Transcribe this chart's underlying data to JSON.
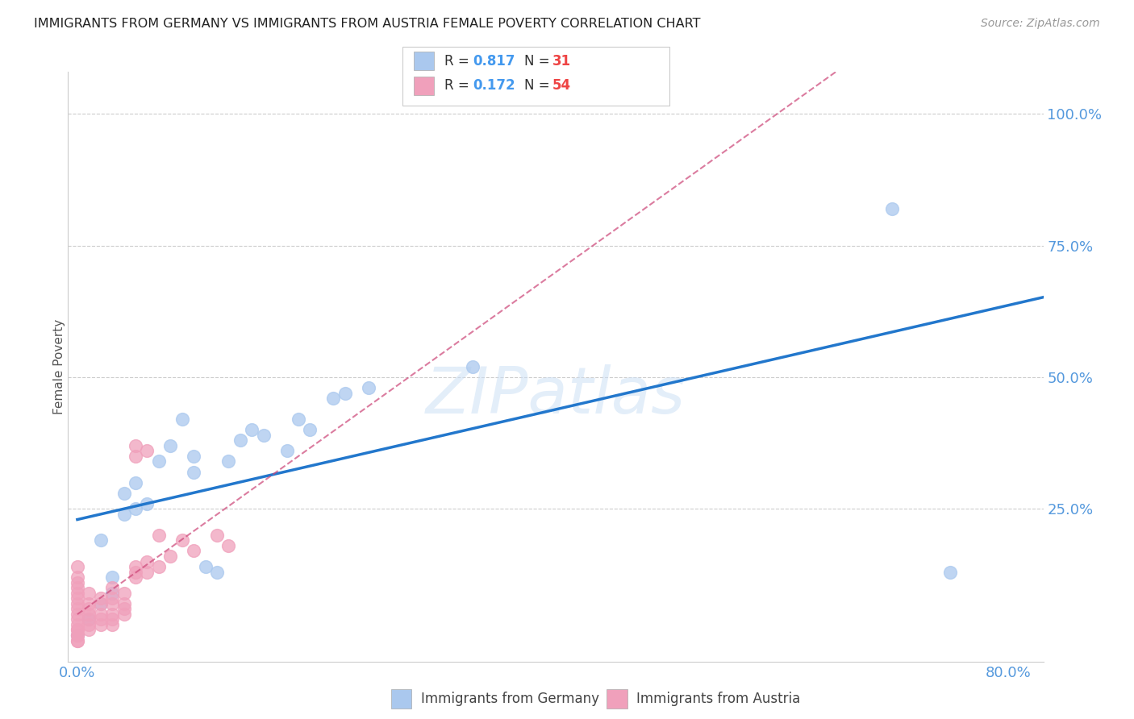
{
  "title": "IMMIGRANTS FROM GERMANY VS IMMIGRANTS FROM AUSTRIA FEMALE POVERTY CORRELATION CHART",
  "source": "Source: ZipAtlas.com",
  "tick_color": "#5599dd",
  "ylabel": "Female Poverty",
  "xlim": [
    -0.008,
    0.83
  ],
  "ylim": [
    -0.04,
    1.08
  ],
  "germany_R": 0.817,
  "germany_N": 31,
  "austria_R": 0.172,
  "austria_N": 54,
  "germany_color": "#aac8ee",
  "germany_line_color": "#2277cc",
  "austria_color": "#f0a0bb",
  "austria_line_color": "#cc4477",
  "legend_label_germany": "Immigrants from Germany",
  "legend_label_austria": "Immigrants from Austria",
  "germany_x": [
    0.0,
    0.01,
    0.02,
    0.02,
    0.03,
    0.03,
    0.04,
    0.04,
    0.05,
    0.05,
    0.06,
    0.07,
    0.08,
    0.09,
    0.1,
    0.1,
    0.11,
    0.12,
    0.13,
    0.14,
    0.15,
    0.16,
    0.18,
    0.19,
    0.2,
    0.22,
    0.23,
    0.25,
    0.34,
    0.7,
    0.75
  ],
  "germany_y": [
    0.01,
    0.04,
    0.07,
    0.19,
    0.09,
    0.12,
    0.24,
    0.28,
    0.25,
    0.3,
    0.26,
    0.34,
    0.37,
    0.42,
    0.32,
    0.35,
    0.14,
    0.13,
    0.34,
    0.38,
    0.4,
    0.39,
    0.36,
    0.42,
    0.4,
    0.46,
    0.47,
    0.48,
    0.52,
    0.82,
    0.13
  ],
  "austria_x": [
    0.0,
    0.0,
    0.0,
    0.0,
    0.0,
    0.0,
    0.0,
    0.0,
    0.0,
    0.0,
    0.0,
    0.0,
    0.0,
    0.0,
    0.0,
    0.0,
    0.0,
    0.01,
    0.01,
    0.01,
    0.01,
    0.01,
    0.01,
    0.01,
    0.02,
    0.02,
    0.02,
    0.02,
    0.02,
    0.03,
    0.03,
    0.03,
    0.03,
    0.03,
    0.03,
    0.04,
    0.04,
    0.04,
    0.04,
    0.05,
    0.05,
    0.05,
    0.05,
    0.05,
    0.06,
    0.06,
    0.06,
    0.07,
    0.07,
    0.08,
    0.09,
    0.1,
    0.12,
    0.13
  ],
  "austria_y": [
    0.0,
    0.0,
    0.01,
    0.01,
    0.02,
    0.02,
    0.03,
    0.04,
    0.05,
    0.06,
    0.07,
    0.08,
    0.09,
    0.1,
    0.11,
    0.12,
    0.14,
    0.02,
    0.03,
    0.04,
    0.05,
    0.06,
    0.07,
    0.09,
    0.03,
    0.04,
    0.05,
    0.07,
    0.08,
    0.03,
    0.04,
    0.05,
    0.07,
    0.08,
    0.1,
    0.05,
    0.06,
    0.07,
    0.09,
    0.12,
    0.13,
    0.14,
    0.35,
    0.37,
    0.13,
    0.15,
    0.36,
    0.14,
    0.2,
    0.16,
    0.19,
    0.17,
    0.2,
    0.18
  ]
}
